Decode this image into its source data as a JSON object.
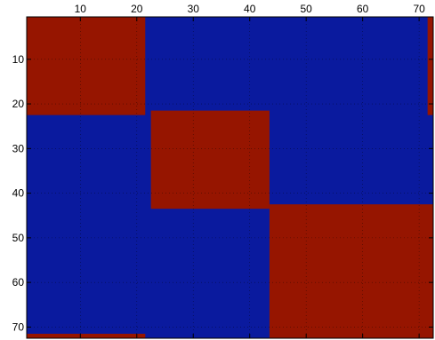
{
  "chart_data": {
    "type": "heatmap",
    "title": "",
    "xlabel": "",
    "ylabel": "",
    "x_axis_position": "top",
    "y_axis_direction": "down",
    "xlim": [
      0.5,
      72.5
    ],
    "ylim": [
      0.5,
      72.5
    ],
    "x_ticks": [
      10,
      20,
      30,
      40,
      50,
      60,
      70
    ],
    "y_ticks": [
      10,
      20,
      30,
      40,
      50,
      60,
      70
    ],
    "x_tick_labels": [
      "10",
      "20",
      "30",
      "40",
      "50",
      "60",
      "70"
    ],
    "y_tick_labels": [
      "10",
      "20",
      "30",
      "40",
      "50",
      "60",
      "70"
    ],
    "grid": true,
    "legend": "none",
    "colormap": {
      "0": "#0a1a9e",
      "1": "#961500"
    },
    "background_value": 0,
    "blocks_value_1": [
      {
        "rows": [
          1,
          22
        ],
        "cols": [
          1,
          21
        ]
      },
      {
        "rows": [
          22,
          43
        ],
        "cols": [
          23,
          43
        ]
      },
      {
        "rows": [
          43,
          72
        ],
        "cols": [
          44,
          72
        ]
      },
      {
        "rows": [
          72,
          72
        ],
        "cols": [
          1,
          21
        ]
      },
      {
        "rows": [
          1,
          22
        ],
        "cols": [
          72,
          72
        ]
      }
    ]
  }
}
